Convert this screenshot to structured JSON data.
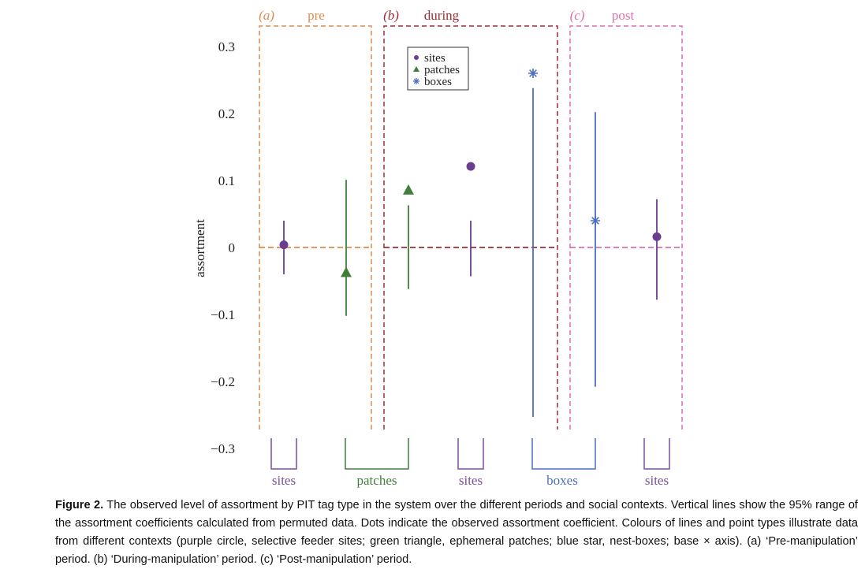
{
  "chart_data": {
    "type": "scatter",
    "ylabel": "assortment",
    "ylim": [
      -0.3,
      0.3
    ],
    "yticks": [
      0.3,
      0.2,
      0.1,
      0,
      -0.1,
      -0.2,
      -0.3
    ],
    "ytick_labels": [
      "0.3",
      "0.2",
      "0.1",
      "0",
      "−0.1",
      "−0.2",
      "−0.3"
    ],
    "grid": false,
    "legend": {
      "placement": "top-center",
      "entries": [
        {
          "label": "sites",
          "marker": "circle",
          "color": "#6b3d91"
        },
        {
          "label": "patches",
          "marker": "triangle",
          "color": "#3f7f3a"
        },
        {
          "label": "boxes",
          "marker": "star",
          "color": "#4a6fc0"
        }
      ]
    },
    "periods": [
      {
        "tag": "(a)",
        "name": "pre",
        "color": "#e08a4e",
        "reference_y": 0
      },
      {
        "tag": "(b)",
        "name": "during",
        "color": "#a12c33",
        "reference_y": 0
      },
      {
        "tag": "(c)",
        "name": "post",
        "color": "#e06fae",
        "reference_y": 0
      }
    ],
    "points": [
      {
        "period": "pre",
        "context": "sites",
        "observed": 0.004,
        "range": [
          -0.04,
          0.04
        ],
        "marker": "circle",
        "color": "#6b3d91"
      },
      {
        "period": "pre",
        "context": "patches",
        "observed": -0.037,
        "range": [
          -0.102,
          0.101
        ],
        "marker": "triangle",
        "color": "#3f7f3a"
      },
      {
        "period": "during",
        "context": "patches",
        "observed": 0.086,
        "range": [
          -0.062,
          0.063
        ],
        "marker": "triangle",
        "color": "#3f7f3a"
      },
      {
        "period": "during",
        "context": "sites",
        "observed": 0.121,
        "range": [
          -0.043,
          0.04
        ],
        "marker": "circle",
        "color": "#6b3d91"
      },
      {
        "period": "during",
        "context": "boxes",
        "observed": 0.26,
        "range": [
          -0.253,
          0.238
        ],
        "marker": "star",
        "color": "#4a6fc0"
      },
      {
        "period": "post",
        "context": "boxes",
        "observed": 0.04,
        "range": [
          -0.208,
          0.202
        ],
        "marker": "star",
        "color": "#4a6fc0"
      },
      {
        "period": "post",
        "context": "sites",
        "observed": 0.016,
        "range": [
          -0.078,
          0.072
        ],
        "marker": "circle",
        "color": "#6b3d91"
      }
    ],
    "base_groups": [
      {
        "label": "sites",
        "color": "#7b4f9e"
      },
      {
        "label": "patches",
        "color": "#3f7f3a"
      },
      {
        "label": "sites",
        "color": "#7b4f9e"
      },
      {
        "label": "boxes",
        "color": "#4a6fc0"
      },
      {
        "label": "sites",
        "color": "#7b4f9e"
      }
    ]
  },
  "caption": {
    "label": "Figure 2.",
    "text": " The observed level of assortment by PIT tag type in the system over the different periods and social contexts. Vertical lines show the 95% range of the assortment coefficients calculated from permuted data. Dots indicate the observed assortment coefficient. Colours of lines and point types illustrate data from different contexts (purple circle, selective feeder sites; green triangle, ephemeral patches; blue star, nest-boxes; base × axis). (a) ‘Pre-manipulation’ period. (b) ‘During-manipulation’ period. (c) ‘Post-manipulation’ period."
  }
}
